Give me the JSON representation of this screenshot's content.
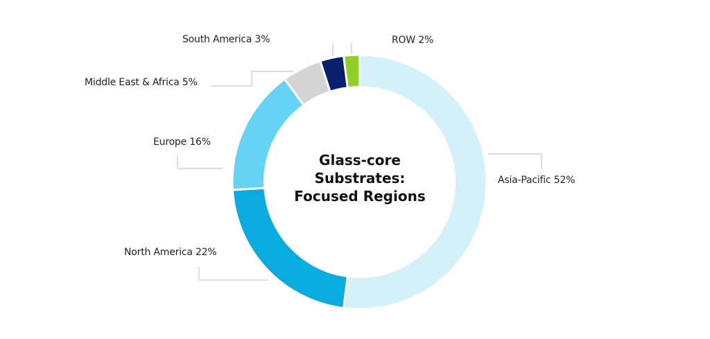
{
  "chart_data": {
    "type": "pie",
    "variant": "donut",
    "title": "Glass-core Substrates: Focused Regions",
    "title_lines": [
      "Glass-core",
      "Substrates:",
      "Focused Regions"
    ],
    "categories": [
      "Asia-Pacific",
      "North America",
      "Europe",
      "Middle East & Africa",
      "South America",
      "ROW"
    ],
    "values": [
      52,
      22,
      16,
      5,
      3,
      2
    ],
    "unit": "%",
    "colors": [
      "#D4F1FA",
      "#0AABDF",
      "#66D3F5",
      "#D4D4D4",
      "#0A1F6E",
      "#8FD12A"
    ],
    "labels": [
      "Asia-Pacific 52%",
      "North America 22%",
      "Europe 16%",
      "Middle East & Africa 5%",
      "South America 3%",
      "ROW 2%"
    ],
    "start_angle_deg": 0,
    "direction": "clockwise",
    "legend": "none (direct labels with leader lines)"
  }
}
